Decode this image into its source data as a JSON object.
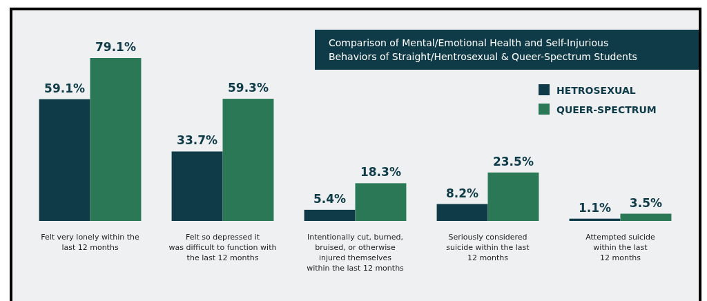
{
  "chart_data": {
    "type": "bar",
    "title": "Comparison of Mental/Emotional Health and Self-Injurious\nBehaviors of Straight/Hentrosexual & Queer-Spectrum Students",
    "categories": [
      "Felt very lonely within the\nlast 12 months",
      "Felt so depressed it\nwas difficult to function with\nthe last 12 months",
      "Intentionally cut, burned,\nbruised, or otherwise\ninjured themselves\nwithin the last 12 months",
      "Seriously considered\nsuicide within the last\n12 months",
      "Attempted suicide\nwithin the last\n12 months"
    ],
    "series": [
      {
        "name": "HETROSEXUAL",
        "color": "#0f3a48",
        "values": [
          59.1,
          33.7,
          5.4,
          8.2,
          1.1
        ],
        "value_labels": [
          "59.1%",
          "33.7%",
          "5.4%",
          "8.2%",
          "1.1%"
        ]
      },
      {
        "name": "QUEER-SPECTRUM",
        "color": "#2a7856",
        "values": [
          79.1,
          59.3,
          18.3,
          23.5,
          3.5
        ],
        "value_labels": [
          "79.1%",
          "59.3%",
          "18.3%",
          "23.5%",
          "3.5%"
        ]
      }
    ],
    "relative": false,
    "legend": "top right"
  }
}
